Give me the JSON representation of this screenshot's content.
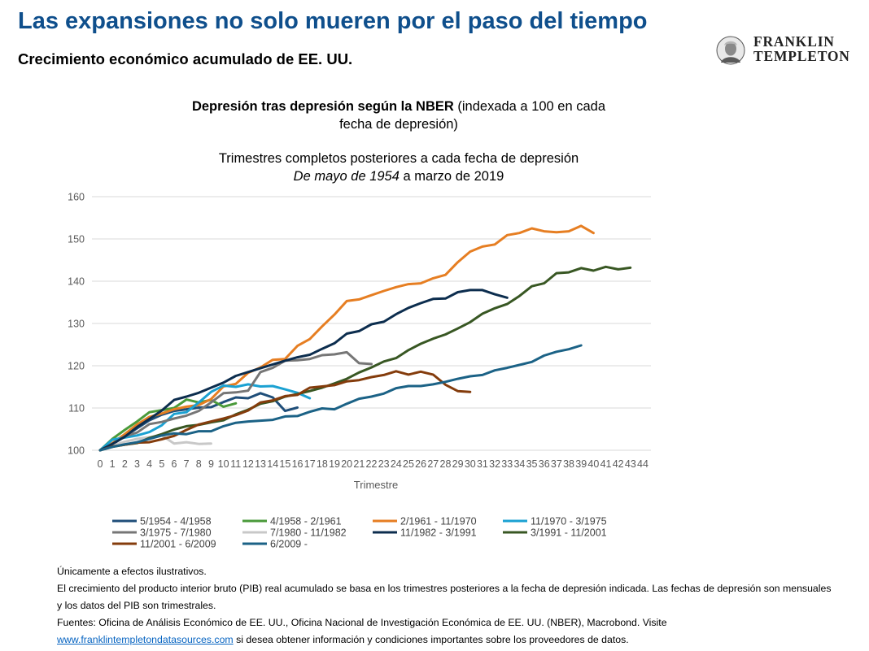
{
  "header": {
    "title": "Las expansiones no solo mueren por el paso del tiempo",
    "subtitle": "Crecimiento económico acumulado de EE. UU."
  },
  "logo": {
    "line1": "FRANKLIN",
    "line2": "TEMPLETON"
  },
  "chart_heading": {
    "line1_bold": "Depresión tras depresión según la NBER",
    "line1_rest": " (indexada a 100 en cada",
    "line2": "fecha de depresión)",
    "line3": "Trimestres completos posteriores a cada fecha de depresión",
    "line4_italic": "De mayo de 1954",
    "line4_rest": " a marzo de 2019"
  },
  "chart_data": {
    "type": "line",
    "xlabel": "Trimestre",
    "ylabel": "",
    "xlim": [
      0,
      44
    ],
    "ylim": [
      100,
      160
    ],
    "yticks": [
      100,
      110,
      120,
      130,
      140,
      150,
      160
    ],
    "xticks": [
      0,
      1,
      2,
      3,
      4,
      5,
      6,
      7,
      8,
      9,
      10,
      11,
      12,
      13,
      14,
      15,
      16,
      17,
      18,
      19,
      20,
      21,
      22,
      23,
      24,
      25,
      26,
      27,
      28,
      29,
      30,
      31,
      32,
      33,
      34,
      35,
      36,
      37,
      38,
      39,
      40,
      41,
      42,
      43,
      44
    ],
    "grid": "horizontal",
    "legend_position": "bottom",
    "series": [
      {
        "name": "5/1954 - 4/1958",
        "color": "#1f4e79",
        "values": [
          100,
          101.6,
          103.3,
          105.2,
          107.1,
          108.4,
          109.3,
          109.7,
          110.1,
          110.2,
          111.4,
          112.5,
          112.3,
          113.5,
          112.5,
          109.3,
          110.1
        ]
      },
      {
        "name": "4/1958 - 2/1961",
        "color": "#4a9a3a",
        "values": [
          100,
          102.7,
          104.8,
          106.8,
          109.0,
          109.5,
          110.0,
          112.0,
          111.3,
          111.9,
          110.3,
          111.1
        ]
      },
      {
        "name": "2/1961 - 11/1970",
        "color": "#e67e22",
        "values": [
          100,
          101.7,
          103.8,
          106.1,
          107.9,
          108.7,
          109.7,
          110.3,
          110.7,
          112.1,
          115.1,
          115.7,
          118.3,
          119.6,
          121.4,
          121.6,
          124.7,
          126.3,
          129.3,
          132.1,
          135.3,
          135.7,
          136.7,
          137.7,
          138.6,
          139.3,
          139.5,
          140.7,
          141.5,
          144.5,
          147.0,
          148.2,
          148.7,
          150.9,
          151.4,
          152.5,
          151.8,
          151.6,
          151.8,
          153.1,
          151.4
        ]
      },
      {
        "name": "11/1970 - 3/1975",
        "color": "#1ba1d2",
        "values": [
          100,
          102.5,
          103.0,
          103.5,
          104.3,
          105.9,
          108.6,
          109.0,
          111.3,
          113.8,
          115.3,
          115.0,
          115.6,
          115.1,
          115.2,
          114.4,
          113.6,
          112.3
        ]
      },
      {
        "name": "3/1975 - 7/1980",
        "color": "#767676",
        "values": [
          100,
          101.4,
          103.3,
          104.2,
          106.2,
          106.7,
          107.5,
          108.2,
          109.3,
          111.3,
          113.5,
          113.7,
          114.1,
          118.5,
          119.5,
          121.2,
          121.3,
          121.6,
          122.5,
          122.7,
          123.2,
          120.6,
          120.4
        ]
      },
      {
        "name": "7/1980 - 11/1982",
        "color": "#c8c8c8",
        "values": [
          100,
          101.1,
          102.0,
          102.7,
          103.1,
          103.5,
          101.6,
          101.9,
          101.5,
          101.6
        ]
      },
      {
        "name": "11/1982 - 3/1991",
        "color": "#0c2d4e",
        "values": [
          100,
          101.5,
          103.2,
          105.5,
          107.4,
          109.4,
          111.9,
          112.7,
          113.6,
          114.8,
          116.0,
          117.6,
          118.5,
          119.4,
          120.3,
          121.2,
          122.0,
          122.6,
          124.0,
          125.3,
          127.6,
          128.2,
          129.8,
          130.4,
          132.2,
          133.7,
          134.8,
          135.8,
          135.9,
          137.4,
          137.9,
          137.9,
          136.9,
          136.1
        ]
      },
      {
        "name": "3/1991 - 11/2001",
        "color": "#385723",
        "values": [
          100,
          100.8,
          101.3,
          101.7,
          102.9,
          103.8,
          104.9,
          105.7,
          106.0,
          106.6,
          107.1,
          108.5,
          109.6,
          111.0,
          111.6,
          112.7,
          113.3,
          114.0,
          114.8,
          115.8,
          116.9,
          118.4,
          119.6,
          121.0,
          121.8,
          123.7,
          125.2,
          126.4,
          127.4,
          128.8,
          130.3,
          132.3,
          133.6,
          134.6,
          136.5,
          138.8,
          139.5,
          141.9,
          142.1,
          143.1,
          142.5,
          143.4,
          142.8,
          143.2
        ]
      },
      {
        "name": "11/2001 - 6/2009",
        "color": "#843c0c",
        "values": [
          100,
          100.9,
          101.3,
          101.8,
          101.9,
          102.6,
          103.4,
          104.8,
          106.1,
          106.8,
          107.5,
          108.3,
          109.4,
          111.3,
          111.8,
          112.8,
          113.1,
          114.8,
          115.1,
          115.4,
          116.3,
          116.6,
          117.3,
          117.8,
          118.7,
          117.9,
          118.6,
          117.9,
          115.5,
          114.0,
          113.8
        ]
      },
      {
        "name": "6/2009 -",
        "color": "#1b6286",
        "values": [
          100,
          100.8,
          101.4,
          101.9,
          102.7,
          103.5,
          104.0,
          103.8,
          104.5,
          104.5,
          105.7,
          106.5,
          106.8,
          107.0,
          107.2,
          108.0,
          108.1,
          109.1,
          109.9,
          109.7,
          111.0,
          112.2,
          112.7,
          113.4,
          114.7,
          115.2,
          115.2,
          115.6,
          116.2,
          116.9,
          117.5,
          117.8,
          118.9,
          119.5,
          120.2,
          120.9,
          122.4,
          123.3,
          123.9,
          124.8
        ]
      }
    ]
  },
  "notes": {
    "line1": "Únicamente a efectos ilustrativos.",
    "line2": "El crecimiento del producto interior bruto (PIB) real acumulado se basa en los trimestres posteriores a la fecha de depresión indicada. Las fechas de depresión son mensuales y los datos del PIB son trimestrales.",
    "line3": "Fuentes: Oficina de Análisis Económico de EE. UU., Oficina Nacional de Investigación Económica de EE. UU. (NBER), Macrobond. Visite",
    "link": "www.franklintempletondatasources.com",
    "line3_rest": " si desea obtener información y condiciones importantes sobre los proveedores de datos."
  }
}
